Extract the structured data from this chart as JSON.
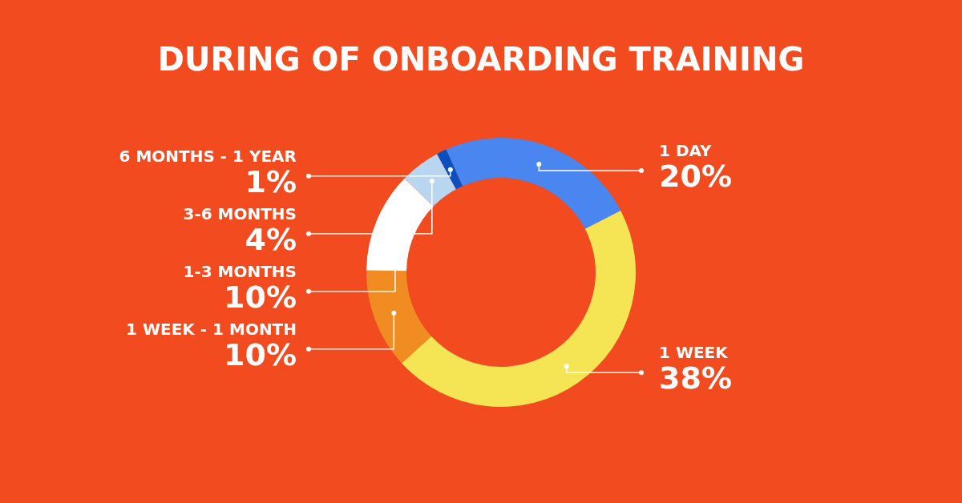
{
  "chart_data": {
    "type": "donut",
    "title": "DURING OF ONBOARDING TRAINING",
    "categories": [
      "1 DAY",
      "1 WEEK",
      "1 WEEK - 1 MONTH",
      "1-3 MONTHS",
      "3-6 MONTHS",
      "6 MONTHS - 1 YEAR"
    ],
    "values": [
      20,
      38,
      10,
      10,
      4,
      1
    ],
    "value_labels": [
      "20%",
      "38%",
      "10%",
      "10%",
      "4%",
      "1%"
    ],
    "colors": [
      "#4a86f0",
      "#f5e454",
      "#f08c22",
      "#ffffff",
      "#b8d6f0",
      "#0b4fc0"
    ],
    "legend": false
  }
}
